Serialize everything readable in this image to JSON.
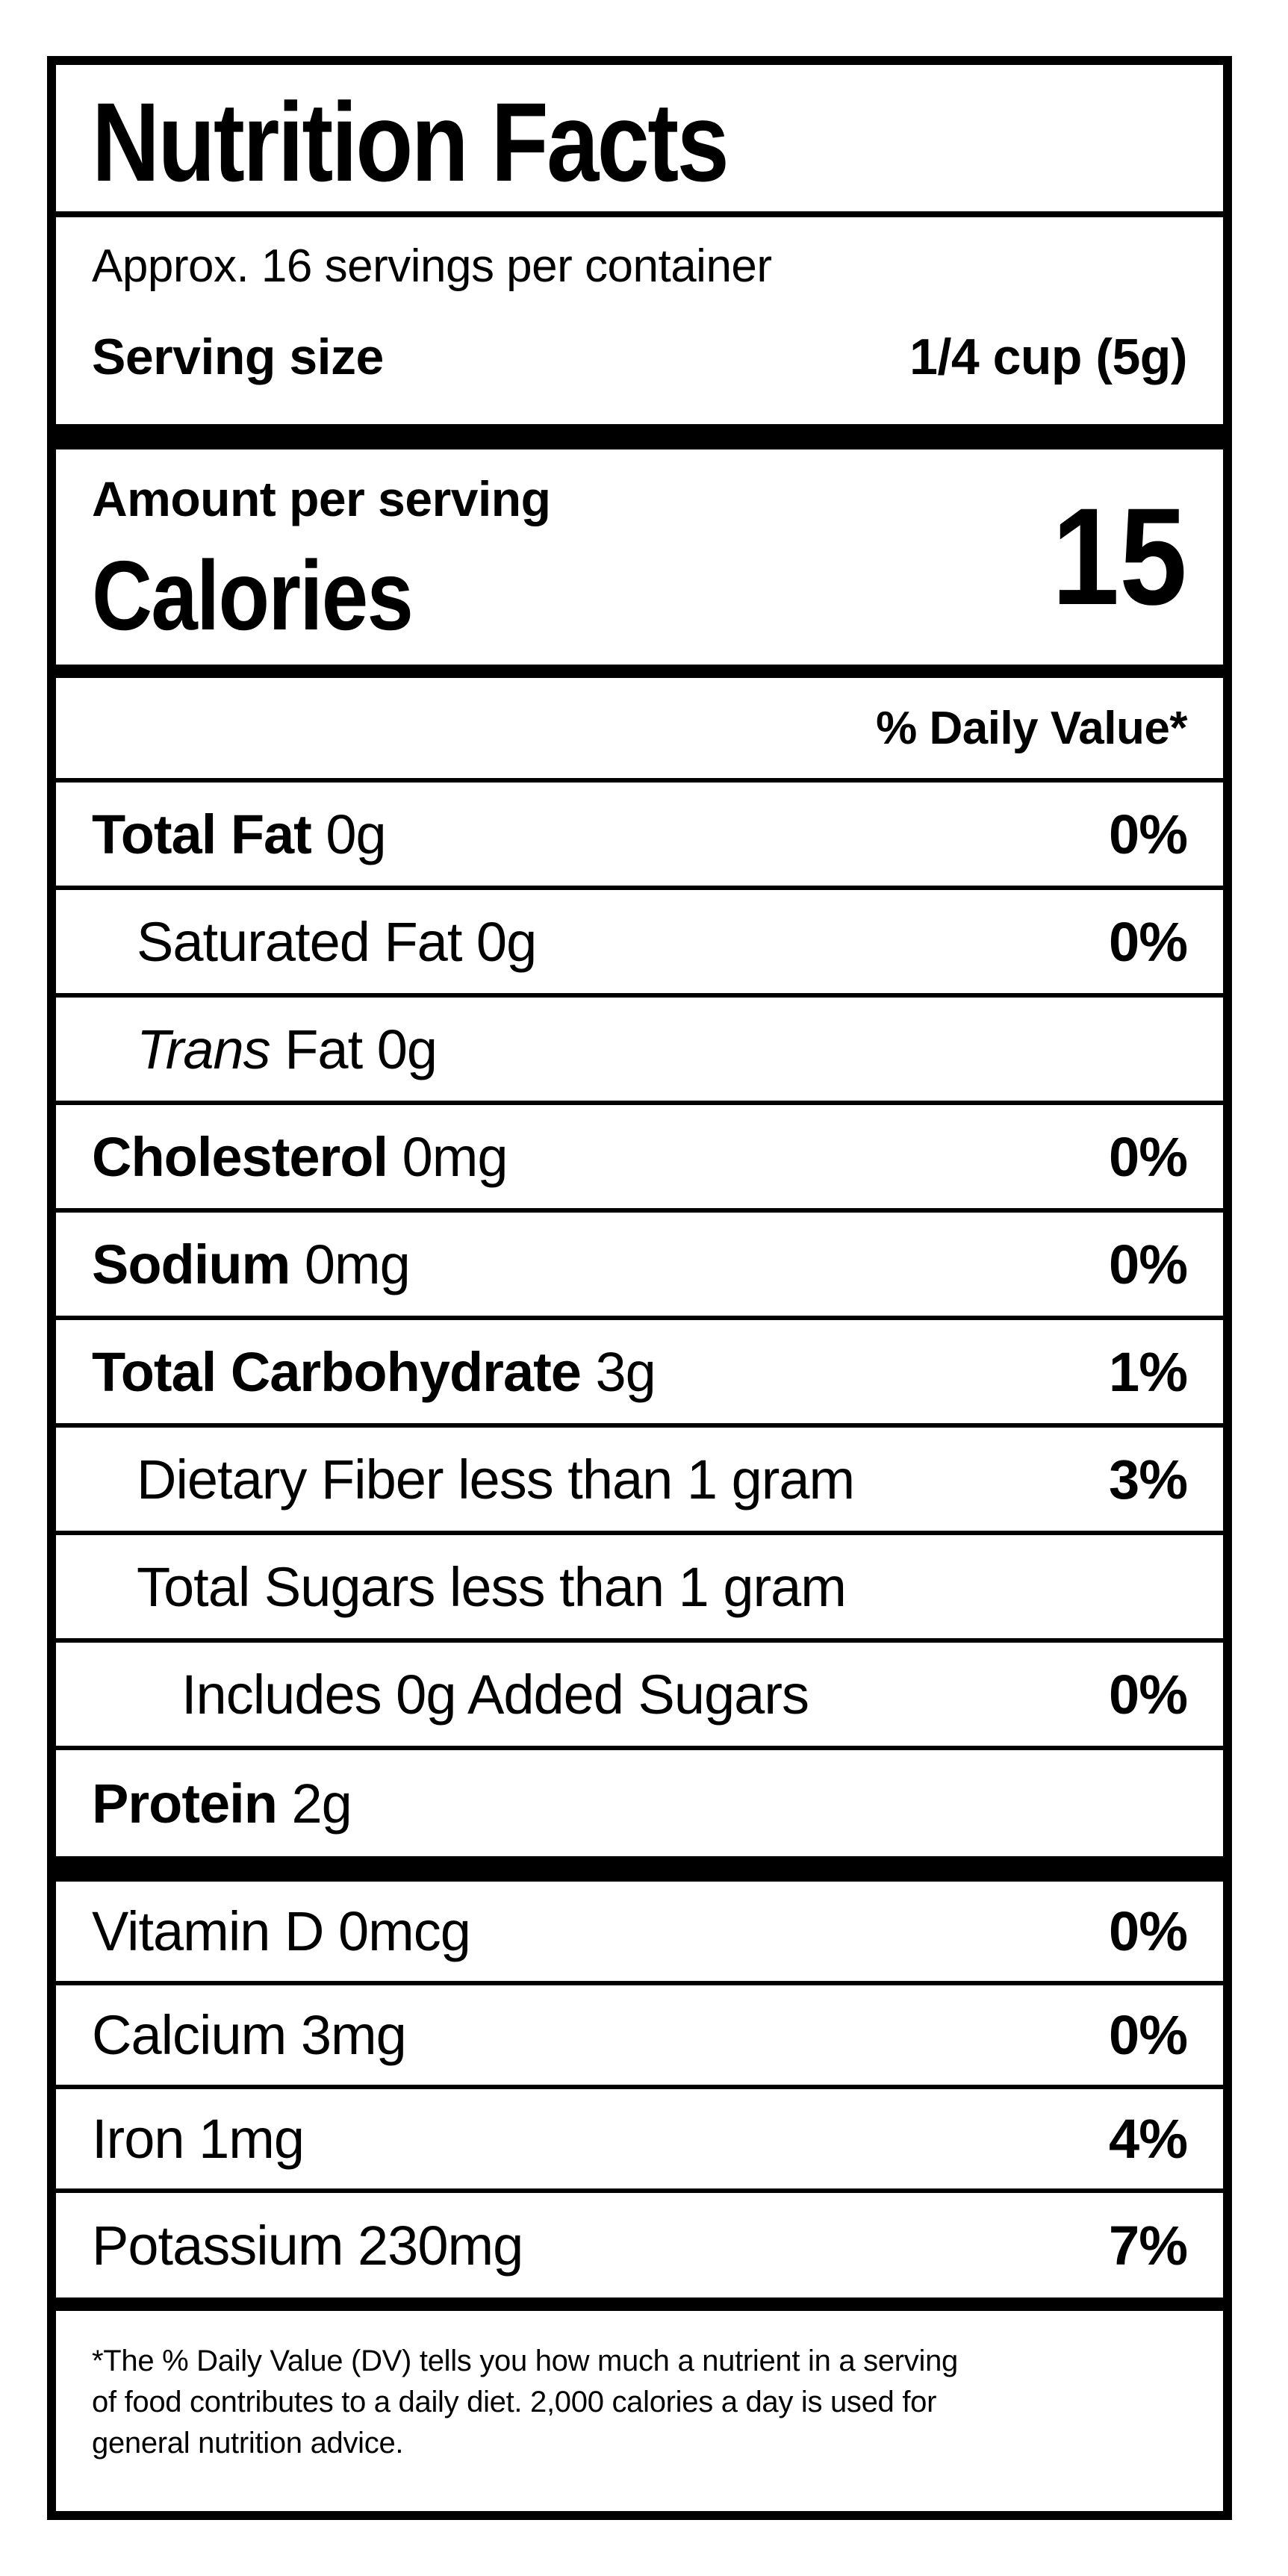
{
  "label": {
    "title": "Nutrition Facts",
    "servings_per_container": "Approx. 16 servings per container",
    "serving_size_label": "Serving size",
    "serving_size_value": "1/4 cup (5g)",
    "amount_per_serving": "Amount per serving",
    "calories_label": "Calories",
    "calories_value": "15",
    "daily_value_header": "% Daily Value*",
    "nutrient_rows": [
      {
        "parts": [
          {
            "t": "Total Fat",
            "style": "bold"
          },
          {
            "t": " 0g",
            "style": "plain"
          }
        ],
        "dv": "0%",
        "indent": 0
      },
      {
        "parts": [
          {
            "t": "Saturated Fat 0g",
            "style": "plain"
          }
        ],
        "dv": "0%",
        "indent": 1
      },
      {
        "parts": [
          {
            "t": "Trans",
            "style": "italic"
          },
          {
            "t": " Fat 0g",
            "style": "plain"
          }
        ],
        "dv": "",
        "indent": 1
      },
      {
        "parts": [
          {
            "t": "Cholesterol",
            "style": "bold"
          },
          {
            "t": " 0mg",
            "style": "plain"
          }
        ],
        "dv": "0%",
        "indent": 0
      },
      {
        "parts": [
          {
            "t": "Sodium",
            "style": "bold"
          },
          {
            "t": " 0mg",
            "style": "plain"
          }
        ],
        "dv": "0%",
        "indent": 0
      },
      {
        "parts": [
          {
            "t": "Total Carbohydrate",
            "style": "bold"
          },
          {
            "t": " 3g",
            "style": "plain"
          }
        ],
        "dv": "1%",
        "indent": 0
      },
      {
        "parts": [
          {
            "t": "Dietary Fiber less than 1 gram",
            "style": "plain"
          }
        ],
        "dv": "3%",
        "indent": 1
      },
      {
        "parts": [
          {
            "t": "Total Sugars less than 1 gram",
            "style": "plain"
          }
        ],
        "dv": "",
        "indent": 1
      },
      {
        "parts": [
          {
            "t": "Includes 0g Added Sugars",
            "style": "plain"
          }
        ],
        "dv": "0%",
        "indent": 2
      },
      {
        "parts": [
          {
            "t": "Protein",
            "style": "bold"
          },
          {
            "t": " 2g",
            "style": "plain"
          }
        ],
        "dv": "",
        "indent": 0,
        "protein": true
      }
    ],
    "vitamin_rows": [
      {
        "parts": [
          {
            "t": "Vitamin D 0mcg",
            "style": "plain"
          }
        ],
        "dv": "0%"
      },
      {
        "parts": [
          {
            "t": "Calcium 3mg",
            "style": "plain"
          }
        ],
        "dv": "0%"
      },
      {
        "parts": [
          {
            "t": "Iron 1mg",
            "style": "plain"
          }
        ],
        "dv": "4%"
      },
      {
        "parts": [
          {
            "t": "Potassium 230mg",
            "style": "plain"
          }
        ],
        "dv": "7%",
        "last": true
      }
    ],
    "footnote_lines": [
      "*The % Daily Value (DV) tells you how much a nutrient in a serving",
      "of food contributes to a daily diet. 2,000 calories a day is used for",
      "general nutrition advice."
    ],
    "colors": {
      "text": "#000000",
      "background": "#ffffff"
    }
  }
}
